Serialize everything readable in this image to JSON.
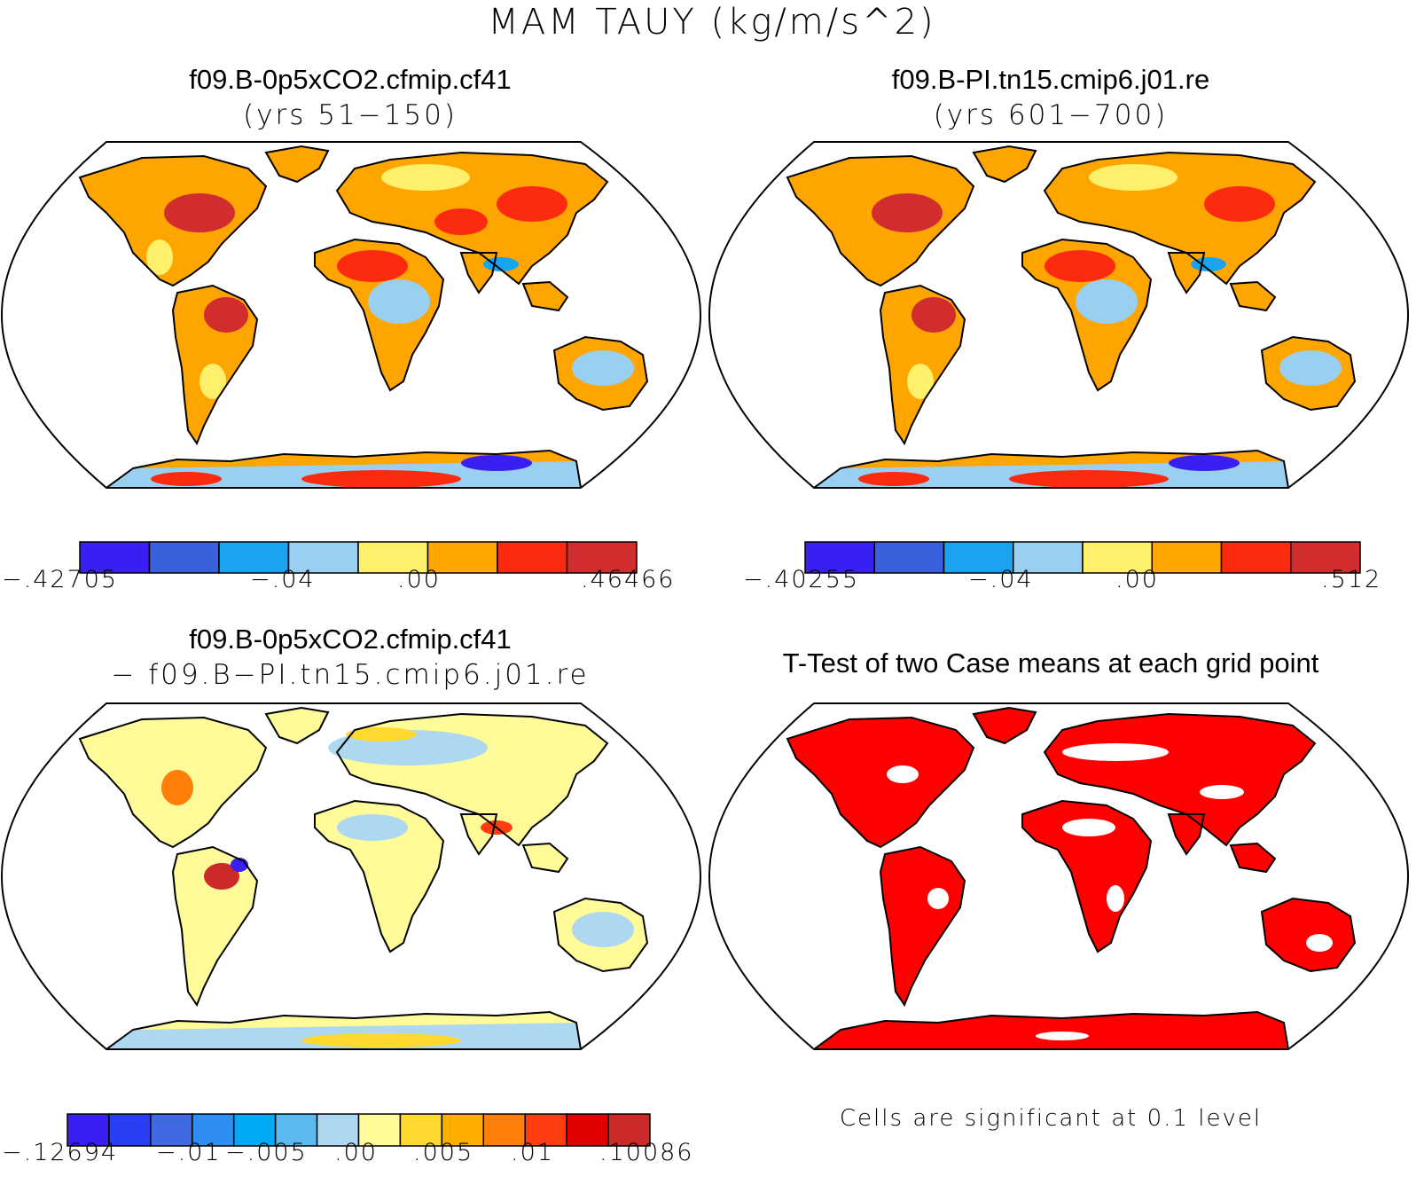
{
  "figure": {
    "title": "MAM TAUY (kg/m/s^2)"
  },
  "panels": [
    {
      "title": "f09.B-0p5xCO2.cfmip.cf41",
      "subtitle": "(yrs 51−150)",
      "colorbar": {
        "colors": [
          "#3a1ff2",
          "#3b60de",
          "#1aa3ef",
          "#99cff0",
          "#fff06b",
          "#ffa500",
          "#fc2b10",
          "#d22d2e"
        ],
        "tick_labels": [
          "−.42705",
          "−.04",
          ".00",
          ".46466"
        ]
      }
    },
    {
      "title": "f09.B-PI.tn15.cmip6.j01.re",
      "subtitle": "(yrs 601−700)",
      "colorbar": {
        "colors": [
          "#3a1ff2",
          "#3b60de",
          "#1aa3ef",
          "#99cff0",
          "#fff06b",
          "#ffa500",
          "#fc2b10",
          "#d22d2e"
        ],
        "tick_labels": [
          "−.40255",
          "−.04",
          ".00",
          ".512"
        ]
      }
    },
    {
      "title": "f09.B-0p5xCO2.cfmip.cf41",
      "subtitle": "− f09.B−PI.tn15.cmip6.j01.re",
      "colorbar": {
        "colors": [
          "#3a1ff2",
          "#2a3ef2",
          "#4169e1",
          "#2f8ff0",
          "#00aaf5",
          "#5ab9ef",
          "#add8f0",
          "#fffb99",
          "#ffd92e",
          "#ffae00",
          "#ff7f0a",
          "#ff3d10",
          "#e00000",
          "#cc2a2a"
        ],
        "tick_labels": [
          "−.12694",
          "−.01",
          "−.005",
          ".00",
          ".005",
          ".01",
          ".10086"
        ]
      }
    },
    {
      "title": "T-Test of two Case means at each grid point",
      "note": "Cells are significant at 0.1 level"
    }
  ]
}
